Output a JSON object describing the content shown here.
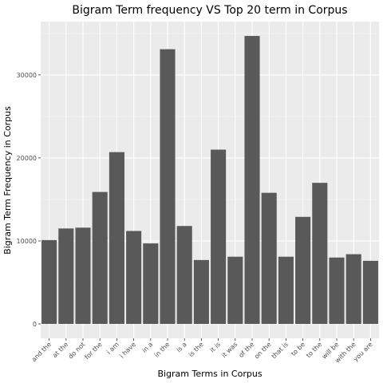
{
  "chart_data": {
    "type": "bar",
    "title": "Bigram Term frequency VS Top 20 term in Corpus",
    "xlabel": "Bigram Terms in Corpus",
    "ylabel": "Bigram Term Frequency in Corpus",
    "categories": [
      "and the",
      "at the",
      "do not",
      "for the",
      "i am",
      "i have",
      "in a",
      "in the",
      "is a",
      "is the",
      "it is",
      "it was",
      "of the",
      "on the",
      "that is",
      "to be",
      "to the",
      "will be",
      "with the",
      "you are"
    ],
    "values": [
      10100,
      11500,
      11600,
      15900,
      20700,
      11200,
      9700,
      33100,
      11800,
      7700,
      21000,
      8100,
      34700,
      15800,
      8100,
      12900,
      17000,
      8000,
      8400,
      7600
    ],
    "y_ticks": [
      0,
      10000,
      20000,
      30000
    ],
    "y_tick_labels": [
      "0",
      "10000",
      "20000",
      "30000"
    ],
    "ylim": [
      -1735,
      36435
    ],
    "grid": true,
    "colors": {
      "bar": "#595959",
      "panel": "#ebebeb",
      "grid_major": "#ffffff",
      "grid_minor": "#f5f5f5"
    }
  }
}
